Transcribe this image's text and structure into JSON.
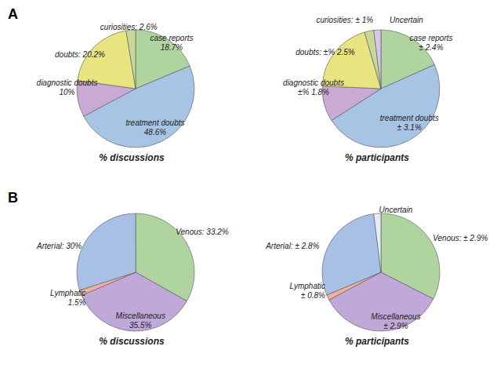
{
  "chart_data": [
    {
      "type": "pie",
      "xlabel": "% discussions",
      "annotations": [
        "A"
      ],
      "categories": [
        "case reports\n18.7%",
        "treatment doubts\n48.6%",
        "diagnostic doubts\n10%",
        "doubts: 20.2%",
        "curiosities: 2.6%"
      ],
      "values": [
        18.7,
        48.6,
        10.0,
        20.2,
        2.6
      ],
      "colors": [
        "#b0d4a0",
        "#a8c4e4",
        "#c8aad4",
        "#e8e480",
        "#c8d898"
      ]
    },
    {
      "type": "pie",
      "xlabel": "% participants",
      "categories": [
        "case reports\n± 2.4%",
        "treatment doubts\n± 3.1%",
        "diagnostic doubts\n±% 1.8%",
        "doubts: ±% 2.5%",
        "curiosities: ± 1%",
        "Uncertain"
      ],
      "values": [
        18.7,
        48.6,
        10.0,
        20.2,
        2.6,
        2.0
      ],
      "colors": [
        "#b0d4a0",
        "#a8c4e4",
        "#c8aad4",
        "#e8e480",
        "#c8d898",
        "#d4c8e8"
      ]
    },
    {
      "type": "pie",
      "xlabel": "% discussions",
      "annotations": [
        "B"
      ],
      "categories": [
        "Venous: 33.2%",
        "Miscellaneous\n35.5%",
        "Lymphatic\n1.5%",
        "Arterial: 30%"
      ],
      "values": [
        33.2,
        35.5,
        1.5,
        30.0
      ],
      "colors": [
        "#b0d4a0",
        "#c0a8d8",
        "#f0b0a0",
        "#a8c0e4"
      ]
    },
    {
      "type": "pie",
      "xlabel": "% participants",
      "categories": [
        "Venous: ± 2.9%",
        "Miscellaneous\n± 2.9%",
        "Lymphatic\n± 0.8%",
        "Arterial: ± 2.8%",
        "Uncertain"
      ],
      "values": [
        33.2,
        35.5,
        1.5,
        30.0,
        2.0
      ],
      "colors": [
        "#b0d4a0",
        "#c0a8d8",
        "#f0b0a0",
        "#a8c0e4",
        "#e8ecf8"
      ]
    }
  ]
}
